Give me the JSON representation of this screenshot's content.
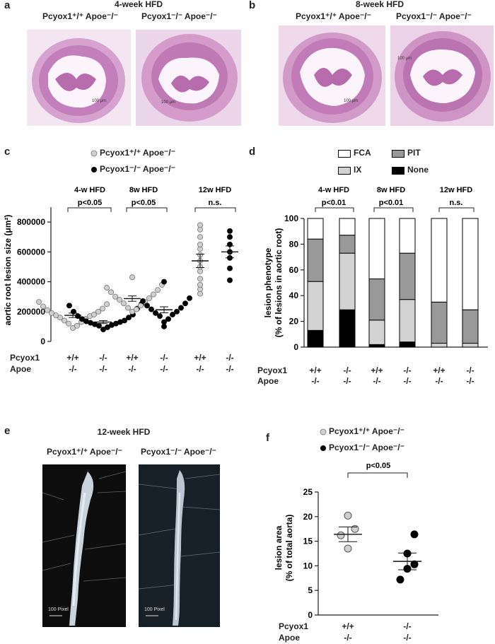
{
  "panel_a": {
    "letter": "a",
    "title": "4-week HFD",
    "left_label": "Pcyox1⁺/⁺ Apoe⁻/⁻",
    "right_label": "Pcyox1⁻/⁻ Apoe⁻/⁻",
    "scale_left": "100 μm",
    "scale_right": "100 μm"
  },
  "panel_b": {
    "letter": "b",
    "title": "8-week HFD",
    "left_label": "Pcyox1⁺/⁺ Apoe⁻/⁻",
    "right_label": "Pcyox1⁻/⁻ Apoe⁻/⁻",
    "scale_left": "100 μm",
    "scale_right": "100 μm"
  },
  "panel_c": {
    "letter": "c",
    "legend": [
      {
        "label": "Pcyox1⁺/⁺ Apoe⁻/⁻",
        "color": "#cfcfcf"
      },
      {
        "label": "Pcyox1⁻/⁻ Apoe⁻/⁻",
        "color": "#000000"
      }
    ],
    "groups": [
      {
        "title": "4-w HFD",
        "p": "p<0.05"
      },
      {
        "title": "8w HFD",
        "p": "p<0.05"
      },
      {
        "title": "12w HFD",
        "p": "n.s."
      }
    ],
    "row_labels": [
      "Pcyox1",
      "Apoe"
    ],
    "genotypes_top": [
      "+/+",
      "-/-",
      "+/+",
      "-/-",
      "+/+",
      "-/-"
    ],
    "genotypes_bottom": [
      "-/-",
      "-/-",
      "-/-",
      "-/-",
      "-/-",
      "-/-"
    ]
  },
  "panel_d": {
    "letter": "d",
    "legend": [
      {
        "label": "FCA",
        "color": "#ffffff"
      },
      {
        "label": "PIT",
        "color": "#999999"
      },
      {
        "label": "IX",
        "color": "#d3d3d3"
      },
      {
        "label": "None",
        "color": "#000000"
      }
    ],
    "groups": [
      {
        "title": "4-w HFD",
        "p": "p<0.01"
      },
      {
        "title": "8w HFD",
        "p": "p<0.01"
      },
      {
        "title": "12w HFD",
        "p": "n.s."
      }
    ],
    "row_labels": [
      "Pcyox1",
      "Apoe"
    ],
    "genotypes_top": [
      "+/+",
      "-/-",
      "+/+",
      "-/-",
      "+/+",
      "-/-"
    ],
    "genotypes_bottom": [
      "-/-",
      "-/-",
      "-/-",
      "-/-",
      "-/-",
      "-/-"
    ]
  },
  "panel_e": {
    "letter": "e",
    "title": "12-week HFD",
    "left_label": "Pcyox1⁺/⁺ Apoe⁻/⁻",
    "right_label": "Pcyox1⁻/⁻ Apoe⁻/⁻",
    "scale_left": "100 Pixel",
    "scale_right": "100 Pixel"
  },
  "panel_f": {
    "letter": "f",
    "legend": [
      {
        "label": "Pcyox1⁺/⁺ Apoe⁻/⁻",
        "color": "#cfcfcf"
      },
      {
        "label": "Pcyox1⁻/⁻ Apoe⁻/⁻",
        "color": "#000000"
      }
    ],
    "p": "p<0.05",
    "row_labels": [
      "Pcyox1",
      "Apoe"
    ],
    "genotypes_top": [
      "+/+",
      "-/-"
    ],
    "genotypes_bottom": [
      "-/-",
      "-/-"
    ]
  },
  "chart_data": [
    {
      "id": "c",
      "type": "scatter",
      "ylabel": "aortic root lesion size (μm²)",
      "ylim": [
        0,
        900000
      ],
      "yticks": [
        0,
        200000,
        400000,
        600000,
        800000
      ],
      "ytick_labels": [
        "0",
        "200000",
        "400000",
        "600000",
        "800000"
      ],
      "series": [
        {
          "color": "#cfcfcf",
          "mean": 175000,
          "sem": 15000,
          "points": [
            90000,
            105000,
            120000,
            130000,
            140000,
            150000,
            160000,
            170000,
            175000,
            180000,
            190000,
            200000,
            210000,
            220000,
            235000,
            250000,
            265000
          ]
        },
        {
          "color": "#000000",
          "mean": 130000,
          "sem": 10000,
          "points": [
            80000,
            95000,
            105000,
            110000,
            115000,
            120000,
            125000,
            130000,
            135000,
            140000,
            150000,
            160000,
            170000,
            180000,
            200000,
            220000,
            240000,
            250000
          ]
        },
        {
          "color": "#cfcfcf",
          "mean": 287000,
          "sem": 18000,
          "points": [
            200000,
            215000,
            225000,
            240000,
            255000,
            265000,
            280000,
            290000,
            300000,
            315000,
            330000,
            345000,
            360000,
            380000,
            430000
          ]
        },
        {
          "color": "#000000",
          "mean": 212000,
          "sem": 20000,
          "points": [
            100000,
            130000,
            150000,
            170000,
            180000,
            190000,
            200000,
            215000,
            225000,
            240000,
            255000,
            270000,
            290000,
            400000
          ]
        },
        {
          "color": "#cfcfcf",
          "mean": 540000,
          "sem": 45000,
          "points": [
            320000,
            350000,
            380000,
            420000,
            470000,
            500000,
            540000,
            580000,
            620000,
            650000,
            700000,
            750000,
            780000
          ]
        },
        {
          "color": "#000000",
          "mean": 600000,
          "sem": 40000,
          "points": [
            410000,
            490000,
            560000,
            600000,
            650000,
            700000,
            740000
          ]
        }
      ]
    },
    {
      "id": "d",
      "type": "bar",
      "stacked": true,
      "ylabel": "lesion phenotype (% of lesions in aortic root)",
      "ylim": [
        0,
        100
      ],
      "yticks": [
        0,
        20,
        40,
        60,
        80,
        100
      ],
      "segment_order": [
        "None",
        "IX",
        "PIT",
        "FCA"
      ],
      "bars": [
        {
          "None": 13,
          "IX": 38,
          "PIT": 33,
          "FCA": 16
        },
        {
          "None": 29,
          "IX": 44,
          "PIT": 14,
          "FCA": 13
        },
        {
          "None": 2,
          "IX": 19,
          "PIT": 32,
          "FCA": 47
        },
        {
          "None": 4,
          "IX": 33,
          "PIT": 36,
          "FCA": 27
        },
        {
          "None": 0,
          "IX": 3,
          "PIT": 32,
          "FCA": 65
        },
        {
          "None": 0,
          "IX": 3,
          "PIT": 26,
          "FCA": 71
        }
      ]
    },
    {
      "id": "f",
      "type": "scatter",
      "ylabel": "lesion area (% of total aorta)",
      "ylim": [
        0,
        25
      ],
      "yticks": [
        0,
        5,
        10,
        15,
        20,
        25
      ],
      "series": [
        {
          "color": "#cfcfcf",
          "mean": 16.4,
          "sem": 1.5,
          "points": [
            13.5,
            16.2,
            17.5,
            20.2
          ]
        },
        {
          "color": "#000000",
          "mean": 10.9,
          "sem": 1.7,
          "points": [
            7.2,
            9.4,
            10.3,
            12.5,
            16.4
          ]
        }
      ]
    }
  ]
}
